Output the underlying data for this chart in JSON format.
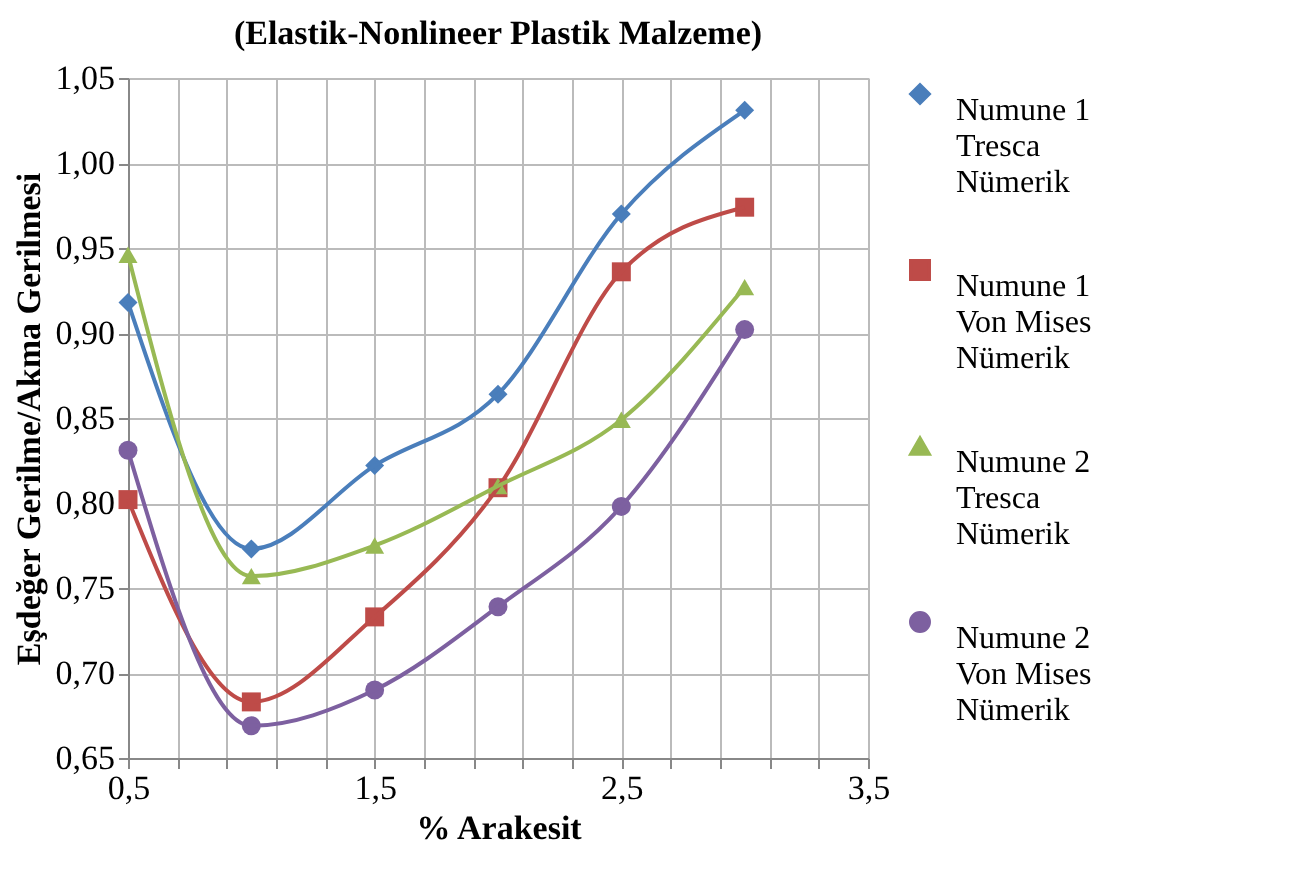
{
  "chart_data": {
    "type": "line",
    "title": "(Elastik-Nonlineer  Plastik Malzeme)",
    "xlabel": "% Arakesit",
    "ylabel": "Eşdeğer Gerilme/Akma Gerilmesi",
    "x": [
      0.5,
      1.0,
      1.5,
      2.0,
      2.5,
      3.0
    ],
    "series": [
      {
        "name": "Numune 1\nTresca\nNümerik",
        "color": "#4a7ebb",
        "marker": "diamond",
        "values": [
          0.918,
          0.773,
          0.822,
          0.864,
          0.97,
          1.031
        ]
      },
      {
        "name": "Numune 1\nVon Mises\nNümerik",
        "color": "#be4b48",
        "marker": "square",
        "values": [
          0.802,
          0.683,
          0.733,
          0.809,
          0.936,
          0.974
        ]
      },
      {
        "name": "Numune 2\nTresca\nNümerik",
        "color": "#98b954",
        "marker": "triangle",
        "values": [
          0.946,
          0.757,
          0.775,
          0.81,
          0.849,
          0.927
        ]
      },
      {
        "name": "Numune 2\nVon Mises\nNümerik",
        "color": "#7d60a0",
        "marker": "circle",
        "values": [
          0.831,
          0.669,
          0.69,
          0.739,
          0.798,
          0.902
        ]
      }
    ],
    "xlim": [
      0.5,
      3.5
    ],
    "xticks": [
      {
        "value": 0.5,
        "label": "0,5"
      },
      {
        "value": 0.7,
        "label": null
      },
      {
        "value": 0.9,
        "label": null
      },
      {
        "value": 1.1,
        "label": null
      },
      {
        "value": 1.3,
        "label": null
      },
      {
        "value": 1.5,
        "label": "1,5"
      },
      {
        "value": 1.7,
        "label": null
      },
      {
        "value": 1.9,
        "label": null
      },
      {
        "value": 2.1,
        "label": null
      },
      {
        "value": 2.3,
        "label": null
      },
      {
        "value": 2.5,
        "label": "2,5"
      },
      {
        "value": 2.7,
        "label": null
      },
      {
        "value": 2.9,
        "label": null
      },
      {
        "value": 3.1,
        "label": null
      },
      {
        "value": 3.3,
        "label": null
      },
      {
        "value": 3.5,
        "label": "3,5"
      }
    ],
    "ylim": [
      0.65,
      1.05
    ],
    "yticks": [
      {
        "value": 0.65,
        "label": "0,65"
      },
      {
        "value": 0.7,
        "label": "0,70"
      },
      {
        "value": 0.75,
        "label": "0,75"
      },
      {
        "value": 0.8,
        "label": "0,80"
      },
      {
        "value": 0.85,
        "label": "0,85"
      },
      {
        "value": 0.9,
        "label": "0,90"
      },
      {
        "value": 0.95,
        "label": "0,95"
      },
      {
        "value": 1.0,
        "label": "1,00"
      },
      {
        "value": 1.05,
        "label": "1,05"
      }
    ],
    "grid": true,
    "legend": "right",
    "line_style": "solid"
  }
}
